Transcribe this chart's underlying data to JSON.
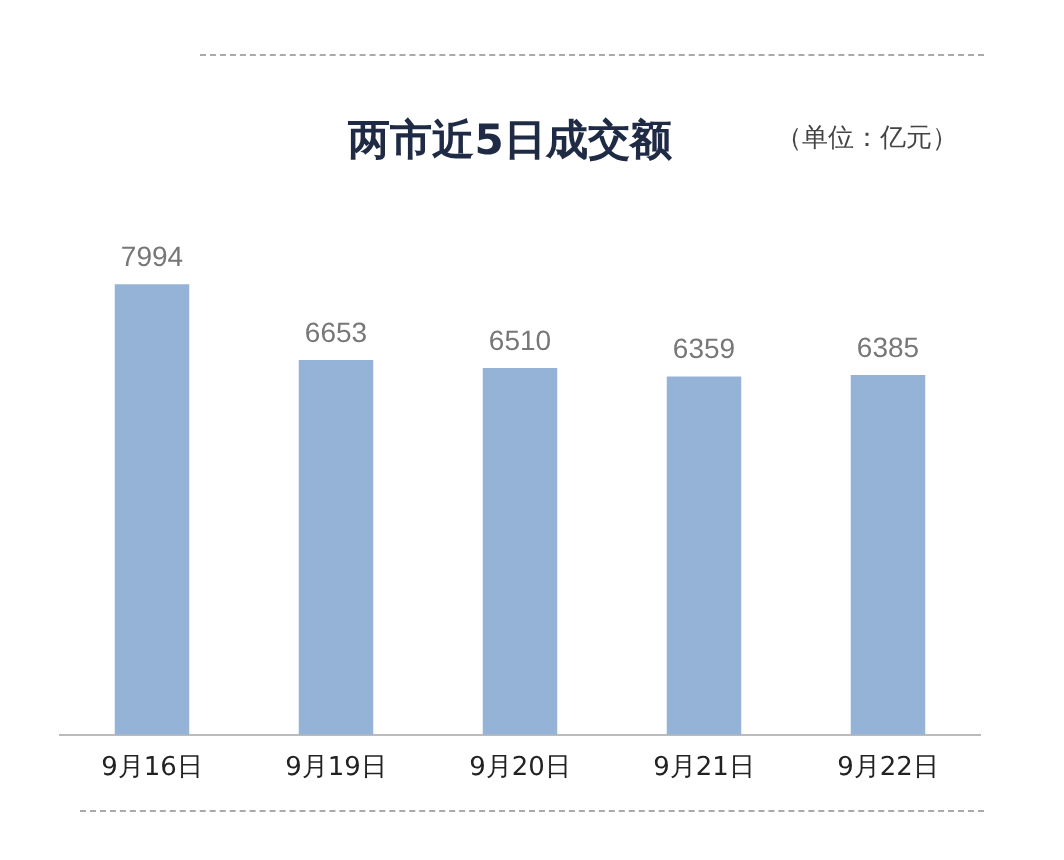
{
  "chart_data": {
    "type": "bar",
    "title": "两市近5日成交额",
    "annotations": [
      "（单位：亿元）"
    ],
    "categories": [
      "9月16日",
      "9月19日",
      "9月20日",
      "9月21日",
      "9月22日"
    ],
    "values": [
      7994,
      6653,
      6510,
      6359,
      6385
    ],
    "color": "#95b3d7",
    "data_labels": true,
    "grid": false,
    "legend": false
  }
}
